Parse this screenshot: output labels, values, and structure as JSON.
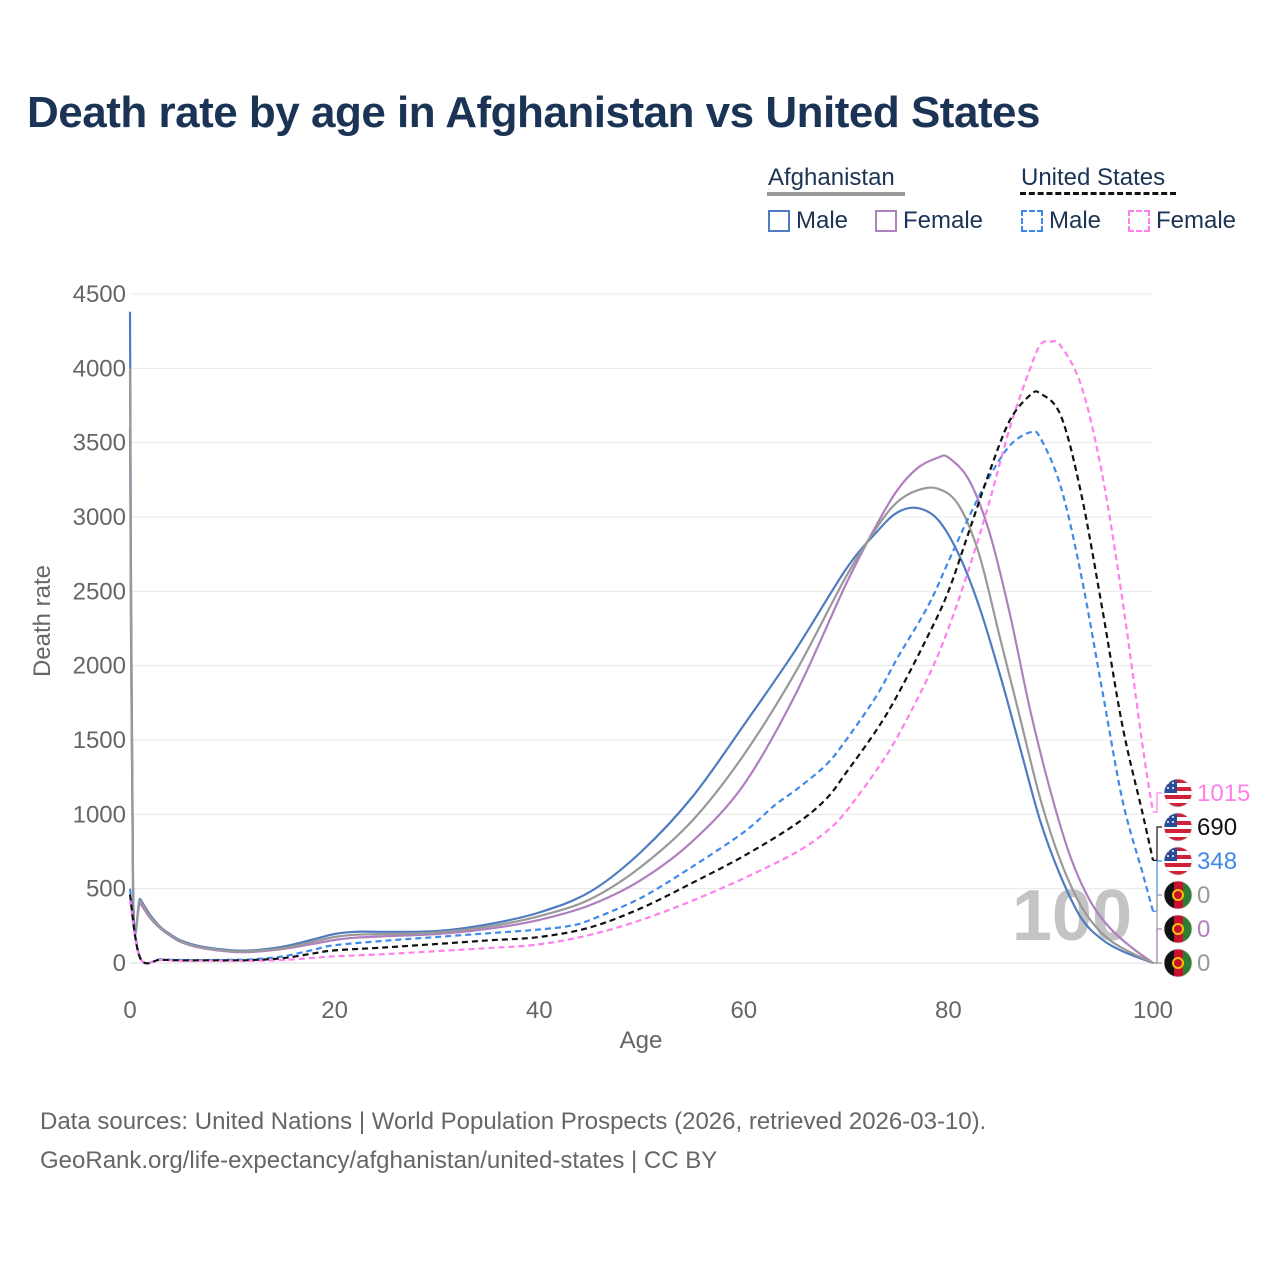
{
  "title": "Death rate by age in Afghanistan vs United States",
  "legend": {
    "groups": [
      {
        "label": "Afghanistan",
        "line_color": "#999999",
        "dashed": false,
        "items": [
          {
            "label": "Male",
            "color": "#4f7cc0"
          },
          {
            "label": "Female",
            "color": "#b07fbd"
          }
        ]
      },
      {
        "label": "United States",
        "line_color": "#111111",
        "dashed": true,
        "items": [
          {
            "label": "Male",
            "color": "#3f8ae8"
          },
          {
            "label": "Female",
            "color": "#ff80ec"
          }
        ]
      }
    ]
  },
  "source": {
    "line1": "Data sources: United Nations | World Population Prospects (2026, retrieved 2026-03-10).",
    "line2": "GeoRank.org/life-expectancy/afghanistan/united-states | CC BY"
  },
  "chart_data": {
    "type": "line",
    "xlabel": "Age",
    "ylabel": "Death rate",
    "xlim": [
      0,
      100
    ],
    "ylim": [
      0,
      4500
    ],
    "xticks": [
      0,
      20,
      40,
      60,
      80,
      100
    ],
    "yticks": [
      0,
      500,
      1000,
      1500,
      2000,
      2500,
      3000,
      3500,
      4000,
      4500
    ],
    "grid": true,
    "watermark": "100",
    "series": [
      {
        "name": "Afghanistan Male",
        "color": "#4f7cc0",
        "dash": false,
        "end_label": "0",
        "label_color": "#999999",
        "flag": "afghanistan",
        "points": [
          [
            0,
            4380
          ],
          [
            0.3,
            500
          ],
          [
            1,
            430
          ],
          [
            2,
            320
          ],
          [
            3,
            240
          ],
          [
            4,
            190
          ],
          [
            5,
            150
          ],
          [
            7,
            110
          ],
          [
            10,
            85
          ],
          [
            12,
            85
          ],
          [
            15,
            110
          ],
          [
            18,
            160
          ],
          [
            20,
            195
          ],
          [
            22,
            210
          ],
          [
            25,
            210
          ],
          [
            30,
            215
          ],
          [
            35,
            260
          ],
          [
            40,
            340
          ],
          [
            45,
            480
          ],
          [
            50,
            750
          ],
          [
            55,
            1120
          ],
          [
            60,
            1600
          ],
          [
            65,
            2100
          ],
          [
            70,
            2650
          ],
          [
            73,
            2900
          ],
          [
            75,
            3030
          ],
          [
            77,
            3060
          ],
          [
            79,
            2980
          ],
          [
            81,
            2750
          ],
          [
            83,
            2400
          ],
          [
            85,
            1950
          ],
          [
            87,
            1450
          ],
          [
            89,
            950
          ],
          [
            91,
            580
          ],
          [
            93,
            300
          ],
          [
            95,
            160
          ],
          [
            97,
            80
          ],
          [
            100,
            0
          ]
        ]
      },
      {
        "name": "Afghanistan Female",
        "color": "#b07fbd",
        "dash": false,
        "end_label": "0",
        "label_color": "#b07fbd",
        "flag": "afghanistan",
        "points": [
          [
            0,
            3600
          ],
          [
            0.3,
            450
          ],
          [
            1,
            400
          ],
          [
            2,
            300
          ],
          [
            3,
            230
          ],
          [
            4,
            180
          ],
          [
            5,
            140
          ],
          [
            7,
            100
          ],
          [
            10,
            75
          ],
          [
            12,
            75
          ],
          [
            15,
            95
          ],
          [
            18,
            130
          ],
          [
            20,
            155
          ],
          [
            22,
            170
          ],
          [
            25,
            180
          ],
          [
            30,
            195
          ],
          [
            35,
            230
          ],
          [
            40,
            290
          ],
          [
            45,
            390
          ],
          [
            50,
            560
          ],
          [
            55,
            820
          ],
          [
            60,
            1200
          ],
          [
            65,
            1800
          ],
          [
            70,
            2550
          ],
          [
            73,
            2950
          ],
          [
            75,
            3180
          ],
          [
            77,
            3330
          ],
          [
            79,
            3400
          ],
          [
            80,
            3400
          ],
          [
            82,
            3250
          ],
          [
            84,
            2900
          ],
          [
            86,
            2350
          ],
          [
            88,
            1700
          ],
          [
            90,
            1150
          ],
          [
            92,
            700
          ],
          [
            94,
            400
          ],
          [
            96,
            220
          ],
          [
            98,
            100
          ],
          [
            100,
            0
          ]
        ]
      },
      {
        "name": "Afghanistan Combined",
        "color": "#999999",
        "dash": false,
        "end_label": "0",
        "label_color": "#999999",
        "flag": "afghanistan",
        "points": [
          [
            0,
            4000
          ],
          [
            0.3,
            470
          ],
          [
            1,
            420
          ],
          [
            2,
            310
          ],
          [
            3,
            235
          ],
          [
            4,
            185
          ],
          [
            5,
            145
          ],
          [
            7,
            105
          ],
          [
            10,
            80
          ],
          [
            12,
            80
          ],
          [
            15,
            100
          ],
          [
            18,
            145
          ],
          [
            20,
            175
          ],
          [
            22,
            190
          ],
          [
            25,
            195
          ],
          [
            30,
            205
          ],
          [
            35,
            245
          ],
          [
            40,
            315
          ],
          [
            45,
            430
          ],
          [
            50,
            650
          ],
          [
            55,
            960
          ],
          [
            60,
            1400
          ],
          [
            65,
            1950
          ],
          [
            70,
            2600
          ],
          [
            73,
            2930
          ],
          [
            75,
            3100
          ],
          [
            77,
            3180
          ],
          [
            79,
            3190
          ],
          [
            81,
            3080
          ],
          [
            83,
            2750
          ],
          [
            85,
            2200
          ],
          [
            87,
            1650
          ],
          [
            89,
            1100
          ],
          [
            91,
            680
          ],
          [
            93,
            380
          ],
          [
            95,
            200
          ],
          [
            97,
            100
          ],
          [
            100,
            0
          ]
        ]
      },
      {
        "name": "United States Male",
        "color": "#3f8ae8",
        "dash": true,
        "end_label": "348",
        "label_color": "#3f8ae8",
        "flag": "united-states",
        "points": [
          [
            0,
            500
          ],
          [
            1,
            35
          ],
          [
            3,
            25
          ],
          [
            5,
            20
          ],
          [
            8,
            20
          ],
          [
            10,
            22
          ],
          [
            12,
            25
          ],
          [
            15,
            45
          ],
          [
            18,
            90
          ],
          [
            20,
            120
          ],
          [
            25,
            150
          ],
          [
            30,
            175
          ],
          [
            35,
            200
          ],
          [
            40,
            225
          ],
          [
            43,
            250
          ],
          [
            45,
            290
          ],
          [
            50,
            440
          ],
          [
            55,
            650
          ],
          [
            60,
            880
          ],
          [
            63,
            1060
          ],
          [
            65,
            1160
          ],
          [
            68,
            1330
          ],
          [
            70,
            1500
          ],
          [
            73,
            1800
          ],
          [
            75,
            2050
          ],
          [
            78,
            2400
          ],
          [
            80,
            2700
          ],
          [
            82,
            3000
          ],
          [
            84,
            3270
          ],
          [
            86,
            3480
          ],
          [
            88,
            3570
          ],
          [
            89,
            3530
          ],
          [
            91,
            3200
          ],
          [
            93,
            2600
          ],
          [
            95,
            1850
          ],
          [
            97,
            1100
          ],
          [
            99,
            600
          ],
          [
            100,
            348
          ]
        ]
      },
      {
        "name": "United States Female",
        "color": "#ff80ec",
        "dash": true,
        "end_label": "1015",
        "label_color": "#ff80ec",
        "flag": "united-states",
        "points": [
          [
            0,
            420
          ],
          [
            1,
            30
          ],
          [
            3,
            20
          ],
          [
            5,
            15
          ],
          [
            8,
            15
          ],
          [
            10,
            15
          ],
          [
            12,
            15
          ],
          [
            15,
            20
          ],
          [
            18,
            35
          ],
          [
            20,
            45
          ],
          [
            25,
            60
          ],
          [
            30,
            80
          ],
          [
            35,
            100
          ],
          [
            40,
            125
          ],
          [
            45,
            190
          ],
          [
            50,
            290
          ],
          [
            55,
            420
          ],
          [
            60,
            570
          ],
          [
            65,
            740
          ],
          [
            68,
            880
          ],
          [
            70,
            1020
          ],
          [
            73,
            1300
          ],
          [
            75,
            1520
          ],
          [
            78,
            1920
          ],
          [
            80,
            2250
          ],
          [
            82,
            2650
          ],
          [
            84,
            3100
          ],
          [
            86,
            3600
          ],
          [
            88,
            4000
          ],
          [
            89,
            4160
          ],
          [
            90,
            4180
          ],
          [
            91,
            4150
          ],
          [
            93,
            3880
          ],
          [
            95,
            3300
          ],
          [
            97,
            2450
          ],
          [
            99,
            1450
          ],
          [
            100,
            1015
          ]
        ]
      },
      {
        "name": "United States Combined",
        "color": "#111111",
        "dash": true,
        "end_label": "690",
        "label_color": "#111111",
        "flag": "united-states",
        "points": [
          [
            0,
            460
          ],
          [
            1,
            32
          ],
          [
            3,
            22
          ],
          [
            5,
            18
          ],
          [
            8,
            18
          ],
          [
            10,
            18
          ],
          [
            12,
            20
          ],
          [
            15,
            33
          ],
          [
            18,
            65
          ],
          [
            20,
            85
          ],
          [
            25,
            105
          ],
          [
            30,
            128
          ],
          [
            35,
            152
          ],
          [
            40,
            175
          ],
          [
            45,
            240
          ],
          [
            50,
            370
          ],
          [
            55,
            540
          ],
          [
            60,
            720
          ],
          [
            65,
            930
          ],
          [
            68,
            1100
          ],
          [
            70,
            1280
          ],
          [
            73,
            1570
          ],
          [
            75,
            1800
          ],
          [
            78,
            2200
          ],
          [
            80,
            2500
          ],
          [
            82,
            2900
          ],
          [
            84,
            3300
          ],
          [
            86,
            3650
          ],
          [
            88,
            3820
          ],
          [
            89,
            3830
          ],
          [
            91,
            3680
          ],
          [
            93,
            3150
          ],
          [
            95,
            2400
          ],
          [
            97,
            1600
          ],
          [
            99,
            1000
          ],
          [
            100,
            690
          ]
        ]
      }
    ]
  }
}
